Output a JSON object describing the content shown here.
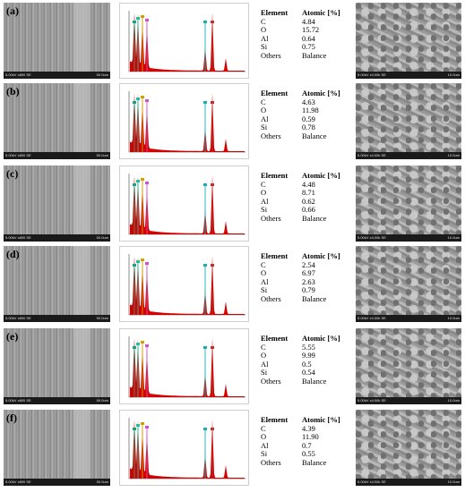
{
  "table_headers": {
    "element": "Element",
    "atomic": "Atomic [%]"
  },
  "sem_footer": {
    "left": "5.00kV x800 SE",
    "right": "50.0um"
  },
  "micro_footer": {
    "left": "5.00kV x4.00k SE",
    "right": "10.0um"
  },
  "rows": [
    {
      "label": "(a)",
      "values": [
        [
          "C",
          "4.84"
        ],
        [
          "O",
          "15.72"
        ],
        [
          "Al",
          "0.64"
        ],
        [
          "Si",
          "0.75"
        ],
        [
          "Others",
          "Balance"
        ]
      ]
    },
    {
      "label": "(b)",
      "values": [
        [
          "C",
          "4.63"
        ],
        [
          "O",
          "11.98"
        ],
        [
          "Al",
          "0.59"
        ],
        [
          "Si",
          "0.78"
        ],
        [
          "Others",
          "Balance"
        ]
      ]
    },
    {
      "label": "(c)",
      "values": [
        [
          "C",
          "4.48"
        ],
        [
          "O",
          "8.71"
        ],
        [
          "Al",
          "0.62"
        ],
        [
          "Si",
          "0.66"
        ],
        [
          "Others",
          "Balance"
        ]
      ]
    },
    {
      "label": "(d)",
      "values": [
        [
          "C",
          "2.54"
        ],
        [
          "O",
          "6.97"
        ],
        [
          "Al",
          "2.63"
        ],
        [
          "Si",
          "0.79"
        ],
        [
          "Others",
          "Balance"
        ]
      ]
    },
    {
      "label": "(e)",
      "values": [
        [
          "C",
          "5.55"
        ],
        [
          "O",
          "9.99"
        ],
        [
          "Al",
          "0.5"
        ],
        [
          "Si",
          "0.54"
        ],
        [
          "Others",
          "Balance"
        ]
      ]
    },
    {
      "label": "(f)",
      "values": [
        [
          "C",
          "4.39"
        ],
        [
          "O",
          "11.90"
        ],
        [
          "Al",
          "0.7"
        ],
        [
          "Si",
          "0.55"
        ],
        [
          "Others",
          "Balance"
        ]
      ]
    }
  ],
  "colors": {
    "spectrum": "#d40000",
    "c_marker": "#1aa37a",
    "o_marker": "#1fbf9f",
    "al_marker": "#d0a000",
    "si_marker": "#d050d0",
    "fe_marker": "#17b0b0",
    "fe2_marker": "#c03030"
  }
}
